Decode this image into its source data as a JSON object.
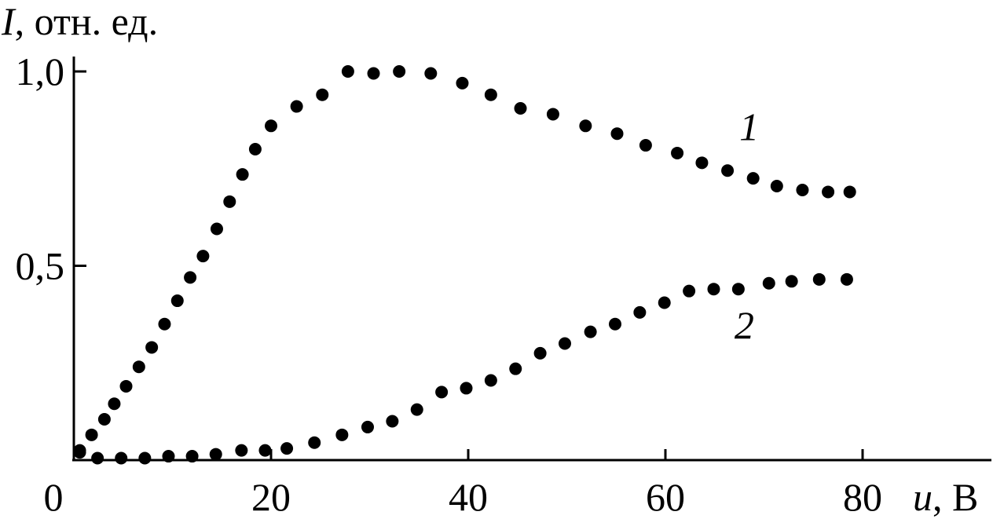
{
  "chart_data": {
    "type": "scatter",
    "title": "",
    "ylabel": {
      "symbol": "I",
      "rest": ", отн. ед."
    },
    "xlabel": {
      "symbol": "u",
      "rest": ", В"
    },
    "origin_label": "0",
    "xlim": [
      0,
      93
    ],
    "ylim": [
      0,
      1.03
    ],
    "x_ticks": [
      {
        "value": 20,
        "label": "20"
      },
      {
        "value": 40,
        "label": "40"
      },
      {
        "value": 60,
        "label": "60"
      },
      {
        "value": 80,
        "label": "80"
      }
    ],
    "y_ticks": [
      {
        "value": 0.5,
        "label": "0,5"
      },
      {
        "value": 1.0,
        "label": "1,0"
      }
    ],
    "grid": false,
    "series": [
      {
        "name": "1",
        "label_at": [
          68.5,
          0.86
        ],
        "x": [
          0.6,
          1.8,
          3.1,
          4.1,
          5.3,
          6.6,
          7.9,
          9.2,
          10.5,
          11.8,
          13.1,
          14.5,
          15.8,
          17.1,
          18.4,
          20.0,
          22.6,
          25.2,
          27.8,
          30.4,
          33.0,
          36.2,
          39.4,
          42.3,
          45.3,
          48.6,
          51.9,
          55.1,
          58.0,
          61.2,
          63.7,
          66.3,
          68.9,
          71.3,
          73.9,
          76.5,
          78.7
        ],
        "y": [
          0.025,
          0.065,
          0.105,
          0.145,
          0.19,
          0.24,
          0.29,
          0.35,
          0.41,
          0.47,
          0.525,
          0.595,
          0.665,
          0.735,
          0.8,
          0.86,
          0.91,
          0.94,
          1.0,
          0.995,
          1.0,
          0.995,
          0.97,
          0.94,
          0.905,
          0.89,
          0.86,
          0.84,
          0.81,
          0.79,
          0.765,
          0.745,
          0.725,
          0.705,
          0.695,
          0.69,
          0.69
        ]
      },
      {
        "name": "2",
        "label_at": [
          68.0,
          0.35
        ],
        "x": [
          0.6,
          2.4,
          4.8,
          7.2,
          9.6,
          12.0,
          14.4,
          17.0,
          19.4,
          21.6,
          24.4,
          27.2,
          29.8,
          32.3,
          34.8,
          37.3,
          39.8,
          42.3,
          44.8,
          47.3,
          49.8,
          52.4,
          54.9,
          57.4,
          59.9,
          62.4,
          64.9,
          67.4,
          70.5,
          72.8,
          75.6,
          78.4
        ],
        "y": [
          0.02,
          0.005,
          0.005,
          0.005,
          0.01,
          0.01,
          0.015,
          0.025,
          0.025,
          0.03,
          0.045,
          0.065,
          0.085,
          0.1,
          0.13,
          0.175,
          0.185,
          0.205,
          0.235,
          0.275,
          0.3,
          0.33,
          0.35,
          0.38,
          0.405,
          0.435,
          0.44,
          0.44,
          0.455,
          0.46,
          0.465,
          0.465
        ]
      }
    ]
  }
}
